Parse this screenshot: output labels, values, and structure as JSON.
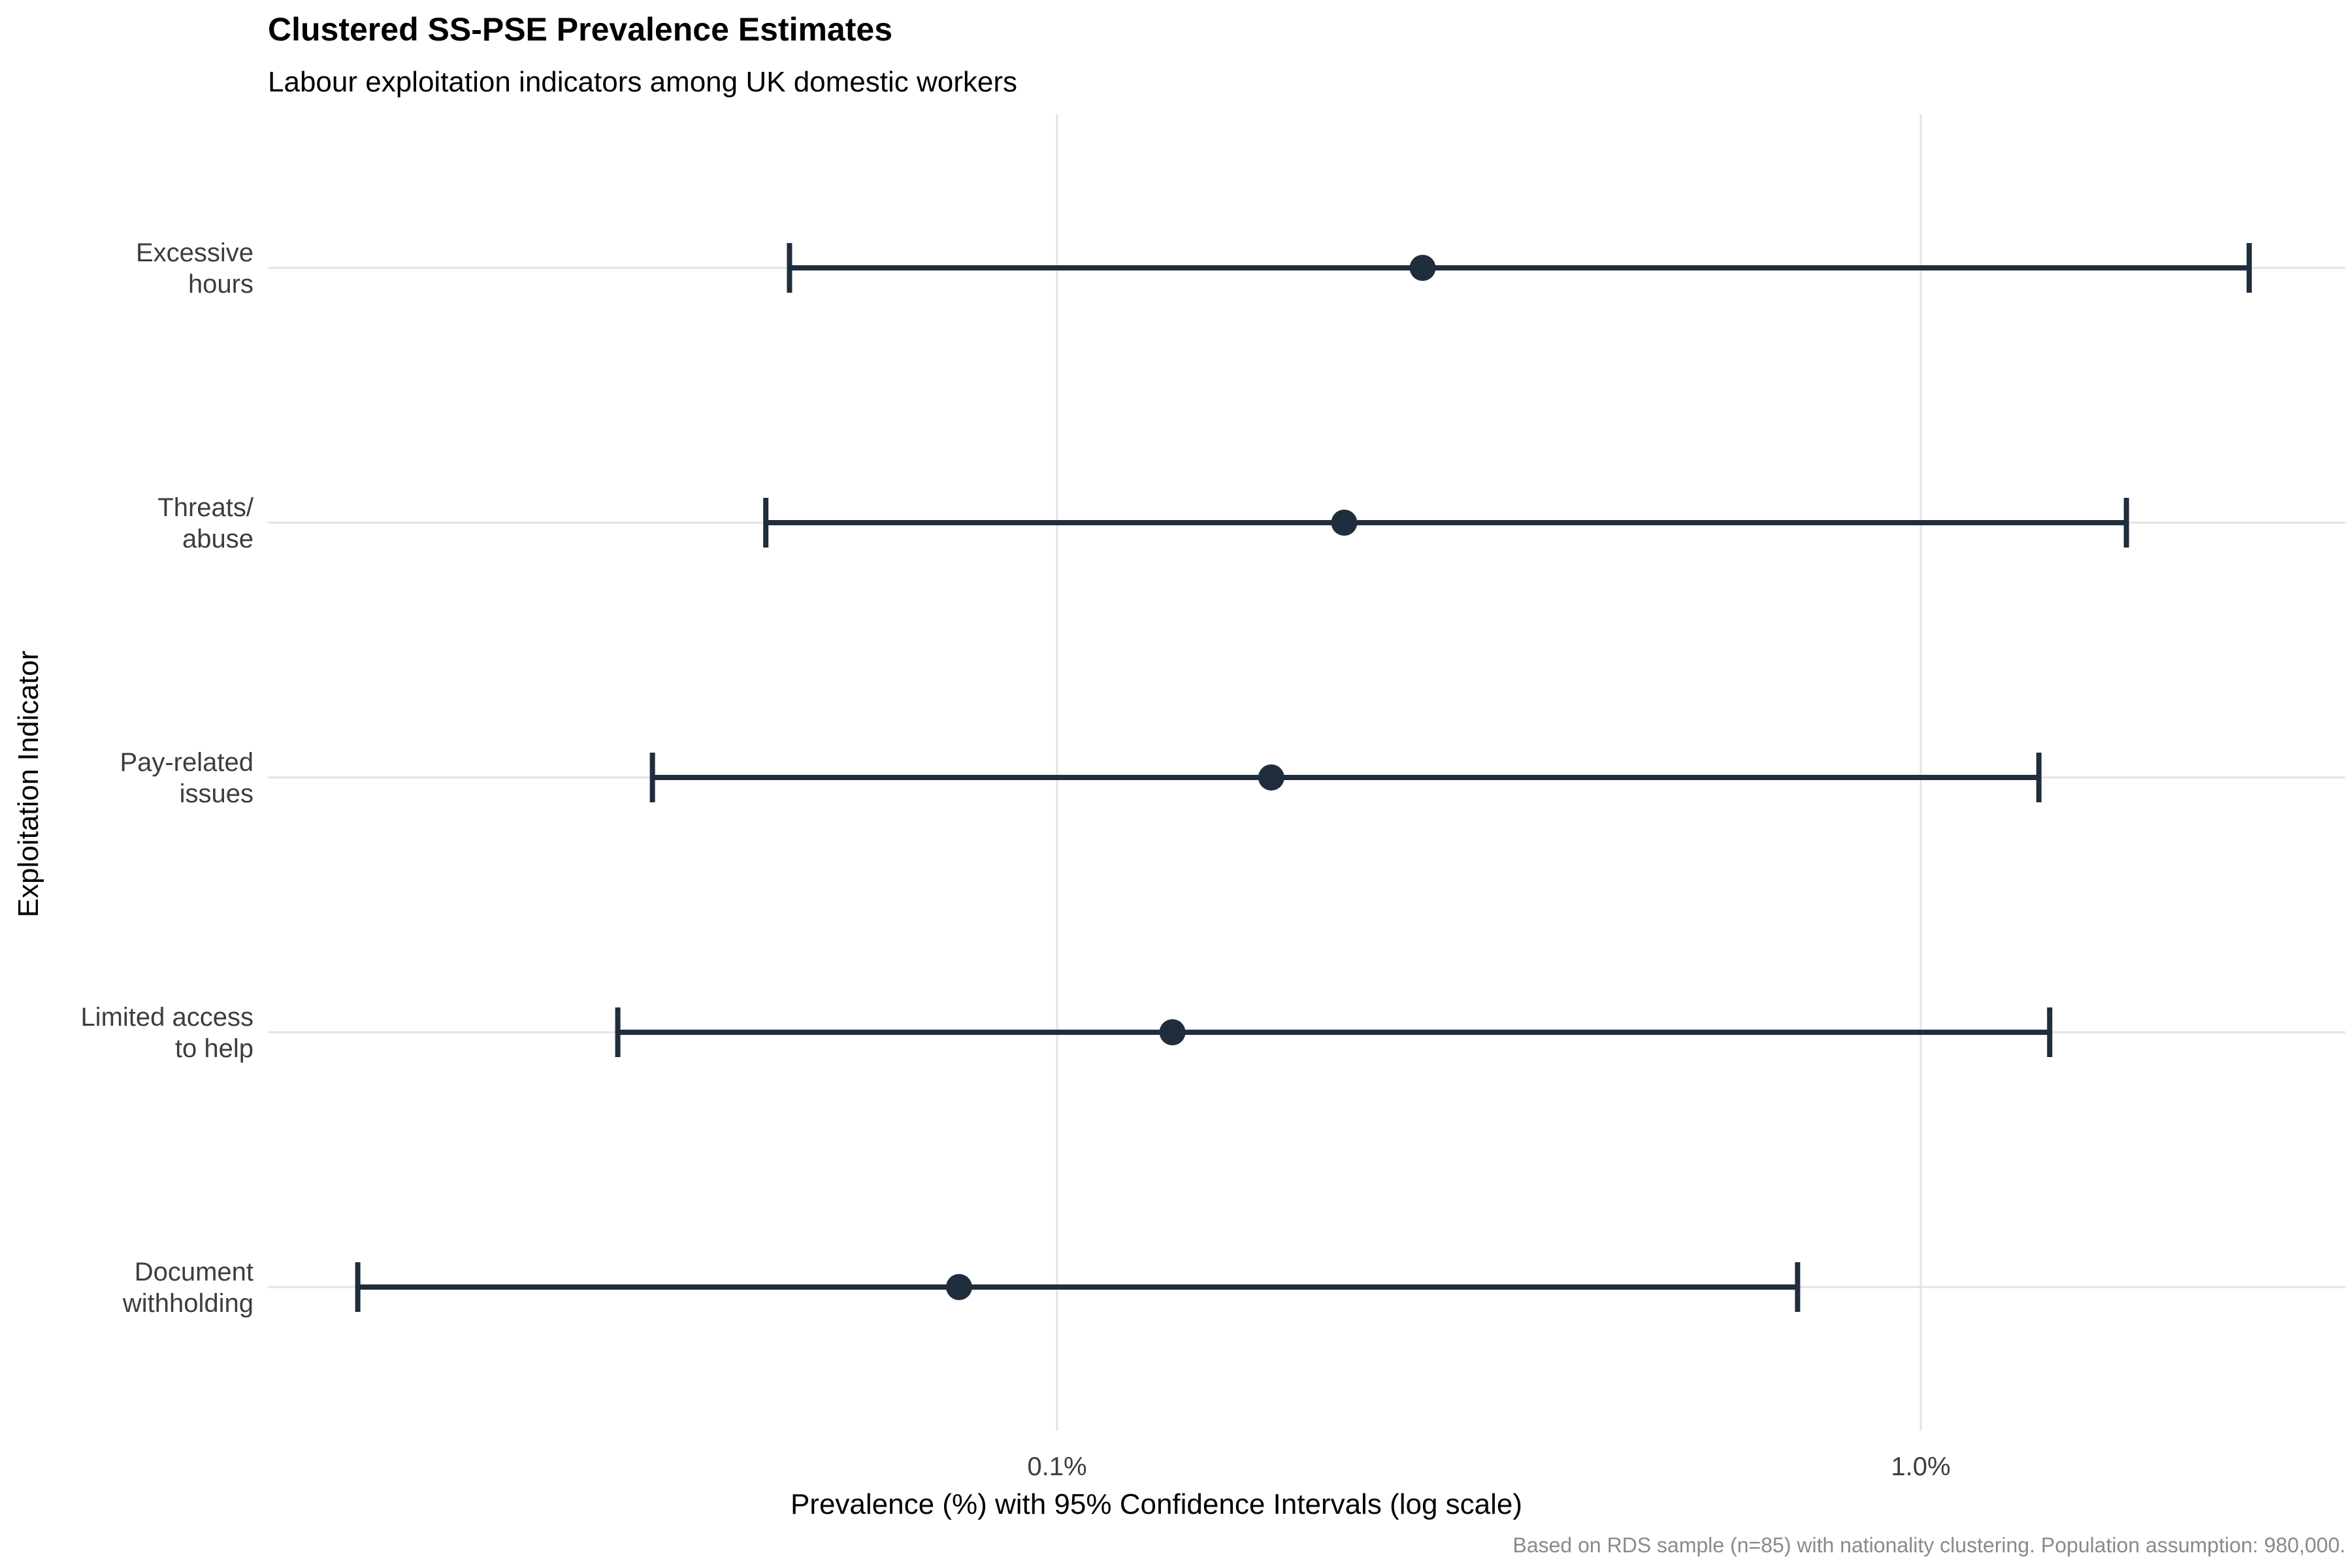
{
  "chart_data": {
    "type": "scatter",
    "title": "Clustered SS-PSE Prevalence Estimates",
    "subtitle": "Labour exploitation indicators among UK domestic workers",
    "xlabel": "Prevalence (%) with 95% Confidence Intervals (log scale)",
    "ylabel": "Exploitation Indicator",
    "caption": "Based on RDS sample (n=85) with nationality clustering. Population assumption: 980,000.",
    "x_scale": "log",
    "xlim": [
      0.0155,
      2.6
    ],
    "x_ticks": [
      {
        "value": 0.1,
        "label": "0.1%"
      },
      {
        "value": 1.0,
        "label": "1.0%"
      }
    ],
    "grid": true,
    "legend": "none",
    "categories": [
      {
        "label_lines": [
          "Excessive",
          "hours"
        ],
        "estimate": 0.265,
        "lower": 0.049,
        "upper": 2.4
      },
      {
        "label_lines": [
          "Threats/",
          "abuse"
        ],
        "estimate": 0.215,
        "lower": 0.046,
        "upper": 1.73
      },
      {
        "label_lines": [
          "Pay-related",
          "issues"
        ],
        "estimate": 0.177,
        "lower": 0.034,
        "upper": 1.37
      },
      {
        "label_lines": [
          "Limited access",
          "to help"
        ],
        "estimate": 0.136,
        "lower": 0.031,
        "upper": 1.41
      },
      {
        "label_lines": [
          "Document",
          "withholding"
        ],
        "estimate": 0.077,
        "lower": 0.0155,
        "upper": 0.72
      }
    ],
    "color": "#1f2d3d"
  }
}
